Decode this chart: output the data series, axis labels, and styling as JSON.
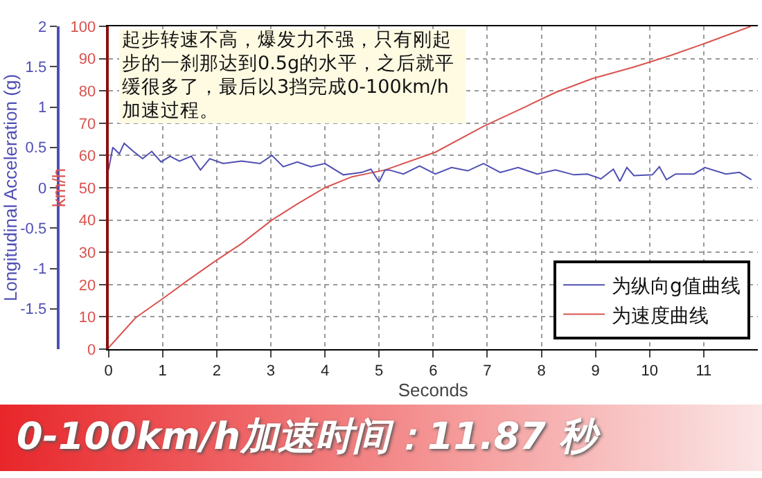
{
  "chart_data": {
    "type": "line",
    "xlabel": "Seconds",
    "ylabel": "km/h",
    "y2label": "Longitudinal Acceleration (g)",
    "xlim": [
      0,
      12
    ],
    "xticks": [
      0,
      1,
      2,
      3,
      4,
      5,
      6,
      7,
      8,
      9,
      10,
      11
    ],
    "ylim": [
      0,
      100
    ],
    "yticks": [
      0,
      10,
      20,
      30,
      40,
      50,
      60,
      70,
      80,
      90,
      100
    ],
    "y2lim": [
      -2,
      2
    ],
    "y2ticks": [
      -1.5,
      -1,
      -0.5,
      0,
      0.5,
      1,
      1.5,
      2
    ],
    "grid": true,
    "legend": "bottom right",
    "line_style": "solid",
    "series": [
      {
        "name": "为纵向g值曲线",
        "color": "#4f4fb4",
        "axis": "y2",
        "x": [
          0,
          0.08,
          0.2,
          0.29,
          0.46,
          0.63,
          0.8,
          0.97,
          1.14,
          1.31,
          1.53,
          1.7,
          1.87,
          2.12,
          2.46,
          2.8,
          3.02,
          3.23,
          3.49,
          3.74,
          4.0,
          4.34,
          4.68,
          4.85,
          5.0,
          5.11,
          5.19,
          5.45,
          5.75,
          6.04,
          6.34,
          6.64,
          6.93,
          7.24,
          7.57,
          7.92,
          8.26,
          8.6,
          8.85,
          9.1,
          9.33,
          9.45,
          9.58,
          9.71,
          10.05,
          10.18,
          10.31,
          10.48,
          10.82,
          11.02,
          11.41,
          11.66,
          11.88
        ],
        "values": [
          0.22,
          0.5,
          0.42,
          0.55,
          0.45,
          0.36,
          0.45,
          0.32,
          0.39,
          0.33,
          0.39,
          0.22,
          0.36,
          0.3,
          0.33,
          0.3,
          0.4,
          0.26,
          0.32,
          0.26,
          0.3,
          0.16,
          0.19,
          0.23,
          0.07,
          0.22,
          0.22,
          0.17,
          0.27,
          0.17,
          0.25,
          0.21,
          0.3,
          0.19,
          0.25,
          0.17,
          0.22,
          0.16,
          0.17,
          0.11,
          0.23,
          0.08,
          0.25,
          0.15,
          0.16,
          0.26,
          0.1,
          0.17,
          0.17,
          0.25,
          0.17,
          0.19,
          0.1
        ]
      },
      {
        "name": "为速度曲线",
        "color": "#d9534f",
        "x": [
          0,
          0.5,
          0.99,
          1.44,
          1.95,
          2.46,
          3.02,
          3.49,
          4.0,
          4.5,
          5.11,
          6.04,
          6.93,
          7.57,
          8.26,
          8.94,
          9.71,
          10.39,
          11.07,
          11.87
        ],
        "values": [
          0.4,
          9.7,
          15.5,
          21,
          27,
          32.7,
          40,
          45,
          50,
          53.4,
          55.5,
          61,
          69,
          74,
          79.5,
          83.8,
          87.4,
          91,
          95,
          100
        ]
      }
    ],
    "annotations": [
      "起步转速不高，爆发力不强，只有刚起步的一刹那达到0.5g的水平，之后就平缓很多了，最后以3挡完成0-100km/h加速过程。",
      "0-100km/h加速时间：11.87 秒"
    ]
  }
}
